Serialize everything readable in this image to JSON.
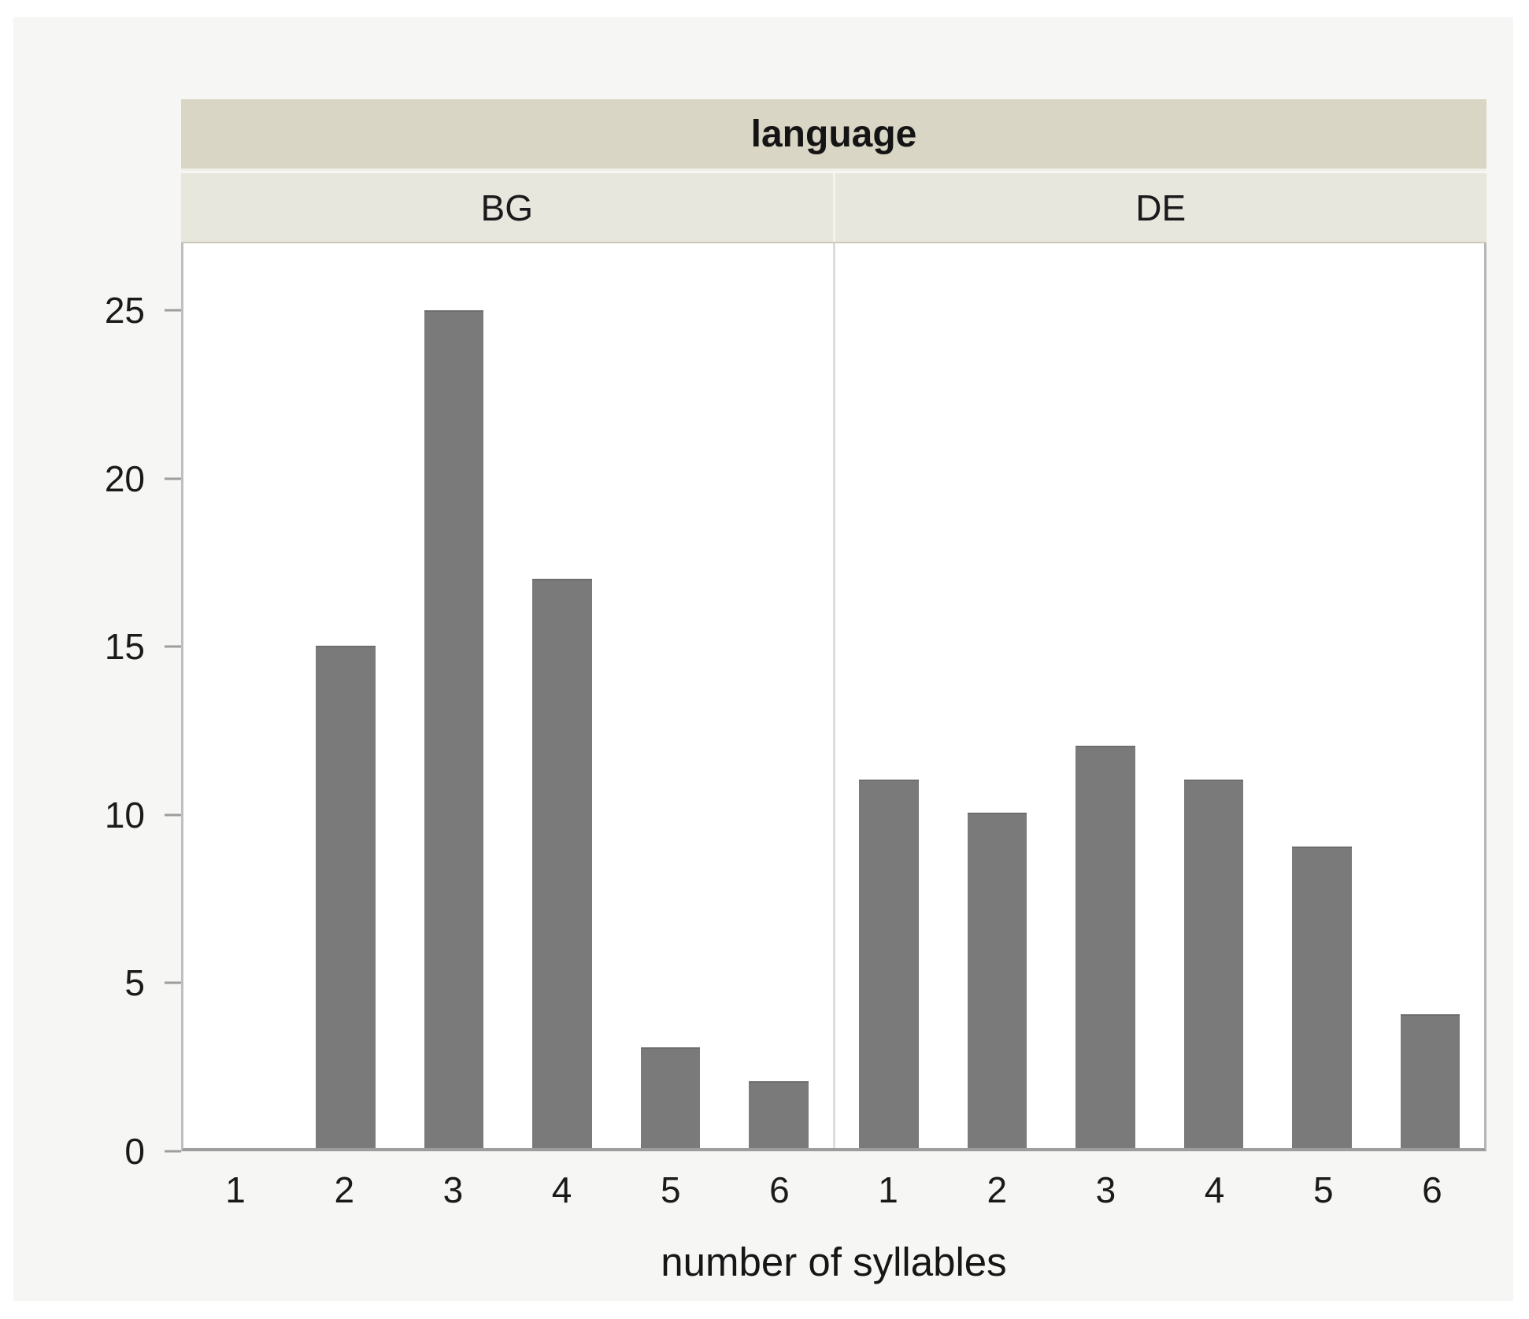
{
  "chart_data": {
    "type": "bar",
    "group_title": "language",
    "facets": [
      {
        "name": "BG",
        "values": [
          0,
          15,
          25,
          17,
          3,
          2
        ]
      },
      {
        "name": "DE",
        "values": [
          11,
          10,
          12,
          11,
          9,
          4
        ]
      }
    ],
    "categories": [
      "1",
      "2",
      "3",
      "4",
      "5",
      "6"
    ],
    "xlabel": "number of syllables",
    "ylabel": "",
    "yticks": [
      0,
      5,
      10,
      15,
      20,
      25
    ],
    "ylim": [
      0,
      27
    ],
    "grid": false,
    "legend": "none",
    "bar_color": "#7a7a7a"
  },
  "colors": {
    "panel_bg": "#f6f6f5",
    "group_header_bg": "#dad6c5",
    "facet_header_bg": "#e8e7dd",
    "bar": "#7a7a7a",
    "axis_line": "#9d9d9d",
    "facet_divider": "#dcdcdc",
    "text": "#1a1a1a"
  }
}
